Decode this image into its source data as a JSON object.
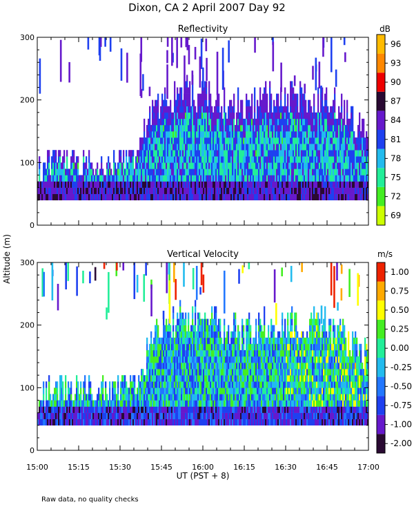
{
  "figure": {
    "title": "Dixon, CA  2 April 2007  Day  92",
    "footnote": "Raw data, no quality checks"
  },
  "chart_data": [
    {
      "type": "heatmap",
      "title": "Reflectivity",
      "colorbar_unit": "dB",
      "colorbar_levels": [
        "69",
        "72",
        "75",
        "78",
        "81",
        "84",
        "87",
        "90",
        "93",
        "96"
      ],
      "colorbar_colors": [
        "#ccff00",
        "#44ee22",
        "#22ee99",
        "#22bbee",
        "#1e40f0",
        "#6619cc",
        "#2a0a33",
        "#ee0000",
        "#ff8800",
        "#ffbb00"
      ],
      "xlabel": "UT  (PST + 8)",
      "ylabel": "Altitude (m)",
      "xlim": [
        0,
        120
      ],
      "ylim": [
        0,
        300
      ],
      "x_ticks": [
        "15:00",
        "15:15",
        "15:30",
        "15:45",
        "16:00",
        "16:15",
        "16:30",
        "16:45",
        "17:00"
      ],
      "y_ticks": [
        "0",
        "100",
        "200",
        "300"
      ],
      "data_floor_m": 40,
      "echo_top_profile": {
        "time_min": [
          0,
          5,
          20,
          30,
          37,
          45,
          60,
          75,
          85,
          90,
          105,
          120
        ],
        "top_m": [
          80,
          100,
          100,
          100,
          120,
          200,
          210,
          180,
          200,
          200,
          200,
          140
        ]
      }
    },
    {
      "type": "heatmap",
      "title": "Vertical Velocity",
      "colorbar_unit": "m/s",
      "colorbar_levels": [
        "-2.00",
        "-1.00",
        "-0.75",
        "-0.50",
        "-0.25",
        "0.00",
        "0.25",
        "0.50",
        "0.75",
        "1.00"
      ],
      "colorbar_colors": [
        "#2a0a33",
        "#6619cc",
        "#1e40f0",
        "#2277ff",
        "#22bbee",
        "#22ee99",
        "#44ee22",
        "#ffff00",
        "#ffaa00",
        "#ee2200"
      ],
      "xlabel": "UT  (PST + 8)",
      "ylabel": "Altitude (m)",
      "xlim": [
        0,
        120
      ],
      "ylim": [
        0,
        300
      ],
      "x_ticks": [
        "15:00",
        "15:15",
        "15:30",
        "15:45",
        "16:00",
        "16:15",
        "16:30",
        "16:45",
        "17:00"
      ],
      "y_ticks": [
        "0",
        "100",
        "200",
        "300"
      ],
      "data_floor_m": 40
    }
  ]
}
